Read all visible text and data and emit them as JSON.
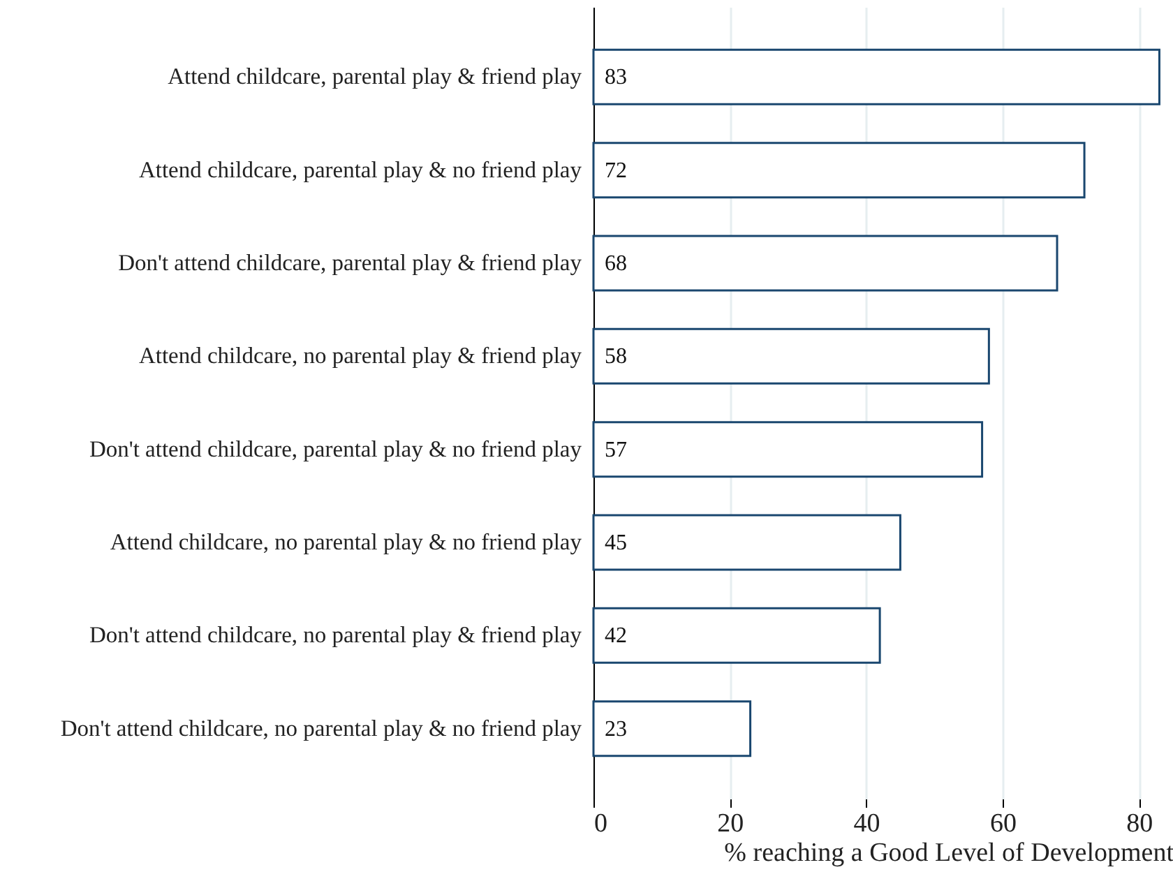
{
  "chart_data": {
    "type": "bar",
    "orientation": "horizontal",
    "xlabel": "% reaching a Good Level of Development",
    "categories": [
      "Attend childcare, parental play & friend play",
      "Attend childcare, parental play & no friend play",
      "Don't attend childcare, parental play & friend play",
      "Attend childcare, no parental play & friend play",
      "Don't attend childcare, parental play & no friend play",
      "Attend childcare, no parental play & no friend play",
      "Don't attend childcare, no parental play & friend play",
      "Don't attend childcare, no parental play & no friend play"
    ],
    "values": [
      83,
      72,
      68,
      58,
      57,
      45,
      42,
      23
    ],
    "color": "#1a476f",
    "data_labels": true,
    "grid": "x",
    "xlim": [
      0,
      85
    ],
    "xticks": [
      0,
      20,
      40,
      60,
      80
    ]
  }
}
